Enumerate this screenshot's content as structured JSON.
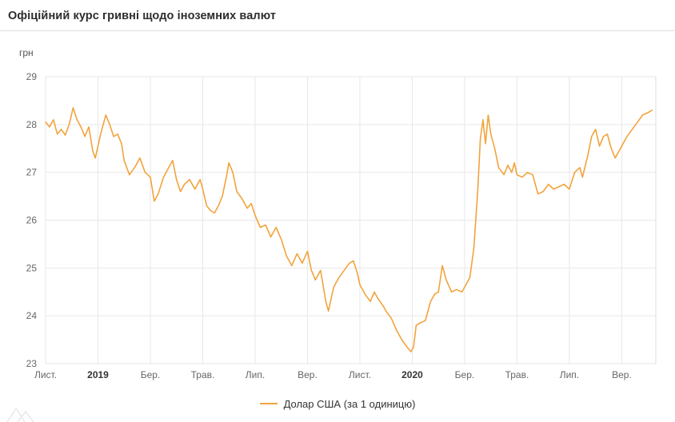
{
  "header": {
    "title": "Офіційний курс гривні щодо іноземних валют"
  },
  "colors": {
    "line": "#F2A33C",
    "grid": "#e7e7e7",
    "frame": "#dcdcdc",
    "axis_text": "#666666",
    "bold_tick_text": "#333333",
    "title_text": "#2d2d2d"
  },
  "legend": {
    "usd_label": "Долар США (за 1 одиницю)"
  },
  "chart_data": {
    "type": "line",
    "title": "Офіційний курс гривні щодо іноземних валют",
    "unit_label": "грн",
    "xlabel": "",
    "ylabel": "грн",
    "ylim": [
      23,
      29
    ],
    "yticks": [
      23,
      24,
      25,
      26,
      27,
      28,
      29
    ],
    "xlim": [
      0,
      23.3
    ],
    "x_encoding": "months since 2018-11-01",
    "grid": true,
    "legend_position": "bottom-center",
    "xticks": [
      {
        "label": "Лист.",
        "pos": 0,
        "bold": false
      },
      {
        "label": "2019",
        "pos": 2,
        "bold": true
      },
      {
        "label": "Бер.",
        "pos": 4,
        "bold": false
      },
      {
        "label": "Трав.",
        "pos": 6,
        "bold": false
      },
      {
        "label": "Лип.",
        "pos": 8,
        "bold": false
      },
      {
        "label": "Вер.",
        "pos": 10,
        "bold": false
      },
      {
        "label": "Лист.",
        "pos": 12,
        "bold": false
      },
      {
        "label": "2020",
        "pos": 14,
        "bold": true
      },
      {
        "label": "Бер.",
        "pos": 16,
        "bold": false
      },
      {
        "label": "Трав.",
        "pos": 18,
        "bold": false
      },
      {
        "label": "Лип.",
        "pos": 20,
        "bold": false
      },
      {
        "label": "Вер.",
        "pos": 22,
        "bold": false
      }
    ],
    "series": [
      {
        "name": "Долар США (за 1 одиницю)",
        "color": "#F2A33C",
        "x": [
          0,
          0.15,
          0.3,
          0.45,
          0.6,
          0.75,
          0.9,
          1.05,
          1.2,
          1.35,
          1.5,
          1.65,
          1.8,
          1.9,
          2.1,
          2.3,
          2.45,
          2.6,
          2.75,
          2.9,
          3.0,
          3.2,
          3.4,
          3.6,
          3.8,
          4.0,
          4.15,
          4.3,
          4.5,
          4.7,
          4.85,
          5.0,
          5.15,
          5.3,
          5.5,
          5.7,
          5.9,
          6.0,
          6.15,
          6.3,
          6.45,
          6.6,
          6.75,
          6.9,
          7.0,
          7.15,
          7.3,
          7.5,
          7.7,
          7.85,
          8.0,
          8.2,
          8.4,
          8.6,
          8.8,
          9.0,
          9.2,
          9.4,
          9.6,
          9.8,
          10.0,
          10.15,
          10.3,
          10.5,
          10.7,
          10.8,
          10.9,
          11.0,
          11.2,
          11.4,
          11.6,
          11.75,
          11.9,
          12.0,
          12.2,
          12.4,
          12.55,
          12.7,
          12.9,
          13.0,
          13.2,
          13.4,
          13.6,
          13.8,
          13.95,
          14.05,
          14.15,
          14.3,
          14.5,
          14.7,
          14.85,
          15.0,
          15.15,
          15.3,
          15.5,
          15.7,
          15.9,
          16.0,
          16.2,
          16.35,
          16.5,
          16.6,
          16.7,
          16.8,
          16.9,
          17.0,
          17.15,
          17.3,
          17.5,
          17.65,
          17.8,
          17.9,
          18.0,
          18.2,
          18.4,
          18.6,
          18.8,
          19.0,
          19.2,
          19.4,
          19.6,
          19.8,
          20.0,
          20.2,
          20.4,
          20.5,
          20.7,
          20.85,
          21.0,
          21.15,
          21.3,
          21.45,
          21.6,
          21.75,
          21.9,
          22.0,
          22.2,
          22.4,
          22.6,
          22.8,
          23.0,
          23.15
        ],
        "values": [
          28.05,
          27.95,
          28.1,
          27.8,
          27.9,
          27.78,
          28.0,
          28.35,
          28.1,
          27.95,
          27.75,
          27.95,
          27.45,
          27.3,
          27.8,
          28.2,
          28.0,
          27.75,
          27.8,
          27.6,
          27.25,
          26.95,
          27.1,
          27.3,
          27.0,
          26.9,
          26.4,
          26.55,
          26.9,
          27.1,
          27.25,
          26.85,
          26.6,
          26.75,
          26.85,
          26.65,
          26.85,
          26.65,
          26.3,
          26.2,
          26.15,
          26.3,
          26.5,
          26.9,
          27.2,
          27.0,
          26.6,
          26.45,
          26.25,
          26.35,
          26.1,
          25.85,
          25.9,
          25.65,
          25.85,
          25.6,
          25.25,
          25.05,
          25.3,
          25.1,
          25.35,
          24.95,
          24.75,
          24.95,
          24.3,
          24.1,
          24.35,
          24.6,
          24.8,
          24.95,
          25.1,
          25.15,
          24.9,
          24.65,
          24.45,
          24.3,
          24.5,
          24.35,
          24.2,
          24.1,
          23.95,
          23.7,
          23.5,
          23.35,
          23.25,
          23.35,
          23.8,
          23.85,
          23.9,
          24.3,
          24.45,
          24.5,
          25.05,
          24.75,
          24.5,
          24.55,
          24.5,
          24.6,
          24.8,
          25.4,
          26.6,
          27.7,
          28.1,
          27.6,
          28.2,
          27.8,
          27.5,
          27.1,
          26.95,
          27.15,
          27.0,
          27.2,
          26.95,
          26.9,
          27.0,
          26.95,
          26.55,
          26.6,
          26.75,
          26.65,
          26.7,
          26.75,
          26.65,
          27.0,
          27.1,
          26.9,
          27.35,
          27.75,
          27.9,
          27.55,
          27.75,
          27.8,
          27.5,
          27.3,
          27.45,
          27.55,
          27.75,
          27.9,
          28.05,
          28.2,
          28.25,
          28.3
        ]
      }
    ]
  }
}
